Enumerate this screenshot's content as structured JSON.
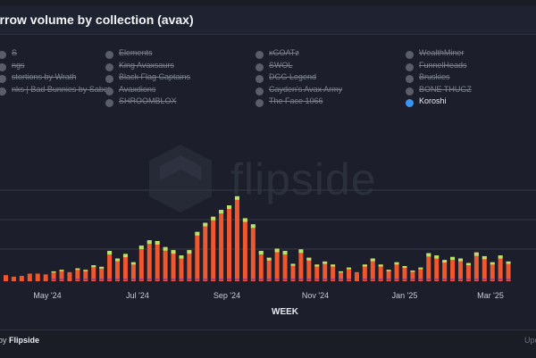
{
  "header": {
    "title": "orrow volume by collection (avax)"
  },
  "legend": [
    {
      "label": "S",
      "active": false
    },
    {
      "label": "ngs",
      "active": false
    },
    {
      "label": "stortions by Wrath",
      "active": false
    },
    {
      "label": "nks | Bad Bunnies by Sabet",
      "active": false
    },
    {
      "label": "Elements",
      "active": false
    },
    {
      "label": "King Avaxsaurs",
      "active": false
    },
    {
      "label": "Black Flag Captains",
      "active": false
    },
    {
      "label": "Avaxdions",
      "active": false
    },
    {
      "label": "SHROOMBLOX",
      "active": false
    },
    {
      "label": "xGOATz",
      "active": false
    },
    {
      "label": "SWOL",
      "active": false
    },
    {
      "label": "DGG Legend",
      "active": false
    },
    {
      "label": "Cayden's Avax Army",
      "active": false
    },
    {
      "label": "The Face 1066",
      "active": false
    },
    {
      "label": "WealthMiner",
      "active": false
    },
    {
      "label": "FunnelHeads",
      "active": false
    },
    {
      "label": "Bruskies",
      "active": false
    },
    {
      "label": "BONE THUGZ",
      "active": false
    },
    {
      "label": "Koroshi",
      "active": true
    }
  ],
  "watermark": "flipside",
  "chart_data": {
    "type": "bar",
    "stacked": true,
    "xlabel": "WEEK",
    "x_ticks": [
      "May '24",
      "Jul '24",
      "Sep '24",
      "Nov '24",
      "Jan '25",
      "Mar '25"
    ],
    "grid": true,
    "values": [
      0.8,
      0.6,
      0.7,
      1.0,
      1.0,
      0.9,
      1.3,
      1.5,
      1.2,
      1.7,
      1.5,
      2.1,
      1.9,
      4.0,
      3.0,
      3.6,
      2.5,
      4.7,
      5.4,
      5.3,
      4.5,
      4.1,
      3.4,
      4.1,
      6.5,
      7.7,
      8.5,
      9.4,
      10.0,
      11.2,
      8.3,
      7.5,
      4.0,
      3.1,
      4.3,
      4.0,
      2.3,
      4.2,
      3.1,
      2.2,
      2.6,
      2.2,
      1.3,
      1.8,
      1.2,
      2.2,
      3.0,
      2.2,
      1.5,
      2.5,
      2.0,
      1.4,
      1.8,
      3.7,
      3.4,
      2.8,
      3.2,
      3.0,
      2.4,
      3.8,
      3.3,
      2.5,
      3.4,
      2.6
    ]
  },
  "footer": {
    "credit_prefix": "by ",
    "credit_brand": "Flipside",
    "right_text": "Upo"
  }
}
